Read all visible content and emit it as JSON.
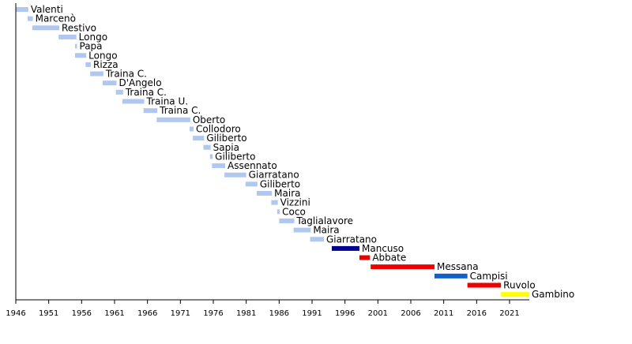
{
  "chart_data": {
    "type": "bar",
    "orientation": "horizontal-timeline",
    "title": "",
    "xlabel": "",
    "ylabel": "",
    "xlim": [
      1946,
      2024
    ],
    "x_ticks": [
      1946,
      1951,
      1956,
      1961,
      1966,
      1971,
      1976,
      1981,
      1986,
      1991,
      1996,
      2001,
      2006,
      2011,
      2016,
      2021
    ],
    "x_tick_labels": [
      "1946",
      "1951",
      "1956",
      "1961",
      "1966",
      "1971",
      "1976",
      "1981",
      "1986",
      "1991",
      "1996",
      "2001",
      "2006",
      "2011",
      "2016",
      "2021"
    ],
    "grid": false,
    "colors": {
      "light_blue": "#b0c8f0",
      "navy": "#000090",
      "red": "#ee0000",
      "blue": "#1060c8",
      "yellow": "#ffff00"
    },
    "series": [
      {
        "label": "Valenti",
        "start": 1946.0,
        "end": 1947.9,
        "color": "light_blue"
      },
      {
        "label": "Marcenò",
        "start": 1947.8,
        "end": 1948.6,
        "color": "light_blue"
      },
      {
        "label": "Restivo",
        "start": 1948.5,
        "end": 1952.6,
        "color": "light_blue"
      },
      {
        "label": "Longo",
        "start": 1952.5,
        "end": 1955.2,
        "color": "light_blue"
      },
      {
        "label": "Papa",
        "start": 1955.0,
        "end": 1955.3,
        "color": "light_blue"
      },
      {
        "label": "Longo",
        "start": 1955.0,
        "end": 1956.7,
        "color": "light_blue"
      },
      {
        "label": "Rizza",
        "start": 1956.6,
        "end": 1957.4,
        "color": "light_blue"
      },
      {
        "label": "Traina C.",
        "start": 1957.3,
        "end": 1959.3,
        "color": "light_blue"
      },
      {
        "label": "D'Angelo",
        "start": 1959.2,
        "end": 1961.3,
        "color": "light_blue"
      },
      {
        "label": "Traina C.",
        "start": 1961.2,
        "end": 1962.3,
        "color": "light_blue"
      },
      {
        "label": "Traina U.",
        "start": 1962.2,
        "end": 1965.5,
        "color": "light_blue"
      },
      {
        "label": "Traina C.",
        "start": 1965.4,
        "end": 1967.5,
        "color": "light_blue"
      },
      {
        "label": "Oberto",
        "start": 1967.4,
        "end": 1972.5,
        "color": "light_blue"
      },
      {
        "label": "Collodoro",
        "start": 1972.4,
        "end": 1973.0,
        "color": "light_blue"
      },
      {
        "label": "Giliberto",
        "start": 1972.9,
        "end": 1974.6,
        "color": "light_blue"
      },
      {
        "label": "Sapia",
        "start": 1974.5,
        "end": 1975.6,
        "color": "light_blue"
      },
      {
        "label": "Giliberto",
        "start": 1975.5,
        "end": 1975.9,
        "color": "light_blue"
      },
      {
        "label": "Assennato",
        "start": 1975.8,
        "end": 1977.8,
        "color": "light_blue"
      },
      {
        "label": "Giarratano",
        "start": 1977.7,
        "end": 1981.0,
        "color": "light_blue"
      },
      {
        "label": "Giliberto",
        "start": 1980.9,
        "end": 1982.7,
        "color": "light_blue"
      },
      {
        "label": "Maira",
        "start": 1982.6,
        "end": 1984.9,
        "color": "light_blue"
      },
      {
        "label": "Vizzini",
        "start": 1984.8,
        "end": 1985.8,
        "color": "light_blue"
      },
      {
        "label": "Coco",
        "start": 1985.7,
        "end": 1986.1,
        "color": "light_blue"
      },
      {
        "label": "Taglialavore",
        "start": 1986.0,
        "end": 1988.3,
        "color": "light_blue"
      },
      {
        "label": "Maira",
        "start": 1988.2,
        "end": 1990.8,
        "color": "light_blue"
      },
      {
        "label": "Giarratano",
        "start": 1990.7,
        "end": 1992.8,
        "color": "light_blue"
      },
      {
        "label": "Mancuso",
        "start": 1994.0,
        "end": 1998.2,
        "color": "navy"
      },
      {
        "label": "Abbate",
        "start": 1998.2,
        "end": 1999.8,
        "color": "red"
      },
      {
        "label": "Messana",
        "start": 1999.9,
        "end": 2009.6,
        "color": "red"
      },
      {
        "label": "Campisi",
        "start": 2009.6,
        "end": 2014.6,
        "color": "blue"
      },
      {
        "label": "Ruvolo",
        "start": 2014.6,
        "end": 2019.7,
        "color": "red"
      },
      {
        "label": "Gambino",
        "start": 2019.7,
        "end": 2024.0,
        "color": "yellow"
      }
    ]
  }
}
